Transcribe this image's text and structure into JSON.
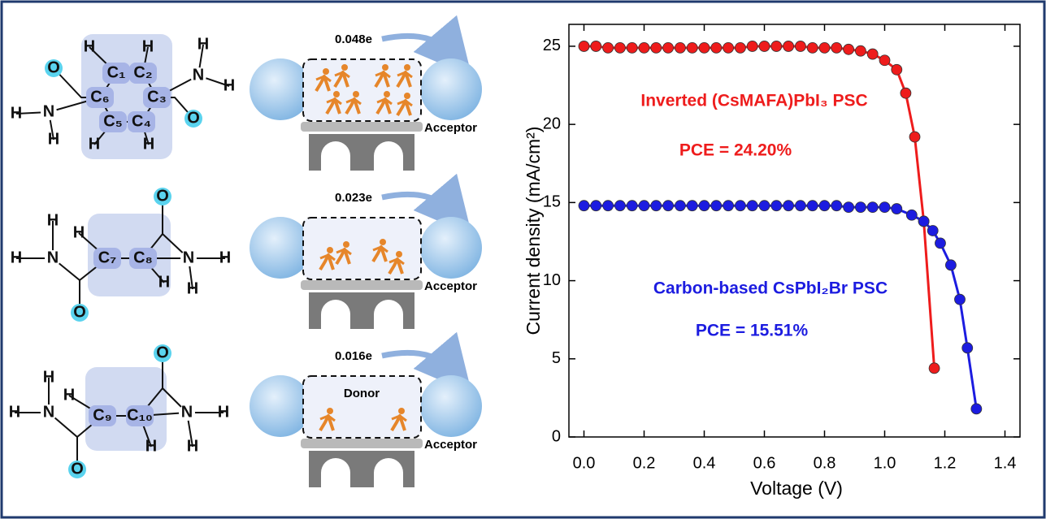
{
  "chart_data": {
    "type": "scatter-line",
    "xlabel": "Voltage (V)",
    "ylabel": "Current density (mA/cm²)",
    "xlim": [
      -0.05,
      1.45
    ],
    "ylim": [
      0,
      26.4
    ],
    "xticks": [
      {
        "value": 0,
        "label": "0.0"
      },
      0.2,
      0.4,
      0.6,
      0.8,
      {
        "value": 1,
        "label": "1.0"
      },
      1.2,
      1.4
    ],
    "yticks": [
      0,
      5,
      10,
      15,
      20,
      25
    ],
    "series": [
      {
        "name": "Inverted (CsMAFA)PbI₃ PSC",
        "color": "#ee1c1c",
        "x": [
          0,
          0.04,
          0.08,
          0.12,
          0.16,
          0.2,
          0.24,
          0.28,
          0.32,
          0.36,
          0.4,
          0.44,
          0.48,
          0.52,
          0.56,
          0.6,
          0.64,
          0.68,
          0.72,
          0.76,
          0.8,
          0.84,
          0.88,
          0.92,
          0.96,
          1.0,
          1.04,
          1.07,
          1.1,
          1.13,
          1.165
        ],
        "values": [
          25.0,
          25.0,
          24.9,
          24.9,
          24.9,
          24.9,
          24.9,
          24.9,
          24.9,
          24.9,
          24.9,
          24.9,
          24.9,
          24.9,
          25.0,
          25.0,
          25.0,
          25.0,
          25.0,
          24.9,
          24.9,
          24.9,
          24.8,
          24.7,
          24.5,
          24.1,
          23.5,
          22.0,
          19.2,
          13.8,
          4.4
        ]
      },
      {
        "name": "Carbon-based CsPbI₂Br PSC",
        "color": "#1c1ce0",
        "x": [
          0,
          0.04,
          0.08,
          0.12,
          0.16,
          0.2,
          0.24,
          0.28,
          0.32,
          0.36,
          0.4,
          0.44,
          0.48,
          0.52,
          0.56,
          0.6,
          0.64,
          0.68,
          0.72,
          0.76,
          0.8,
          0.84,
          0.88,
          0.92,
          0.96,
          1.0,
          1.04,
          1.09,
          1.13,
          1.16,
          1.185,
          1.22,
          1.25,
          1.275,
          1.305
        ],
        "values": [
          14.8,
          14.8,
          14.8,
          14.8,
          14.8,
          14.8,
          14.8,
          14.8,
          14.8,
          14.8,
          14.8,
          14.8,
          14.8,
          14.8,
          14.8,
          14.8,
          14.8,
          14.8,
          14.8,
          14.8,
          14.8,
          14.8,
          14.7,
          14.7,
          14.7,
          14.7,
          14.6,
          14.2,
          13.8,
          13.2,
          12.4,
          11.0,
          8.8,
          5.7,
          1.8
        ]
      }
    ],
    "annotations": [
      "PCE = 24.20%",
      "PCE = 15.51%"
    ]
  },
  "diagram": {
    "molecules": [
      {
        "atoms": [
          "H",
          "H",
          "C₁",
          "C₂",
          "C₆",
          "C₃",
          "C₅",
          "C₄",
          "H",
          "H",
          "O",
          "N",
          "H",
          "H",
          "O",
          "N",
          "H",
          "H"
        ]
      },
      {
        "atoms": [
          "O",
          "H",
          "N",
          "H",
          "O",
          "H",
          "C₇",
          "C₈",
          "H",
          "N",
          "H",
          "H"
        ]
      },
      {
        "atoms": [
          "O",
          "H",
          "N",
          "H",
          "O",
          "H",
          "C₉",
          "C₁₀",
          "H",
          "N",
          "H",
          "H"
        ]
      }
    ],
    "panels": [
      {
        "charge": "0.048e",
        "acceptor": "Acceptor"
      },
      {
        "charge": "0.023e",
        "acceptor": "Acceptor"
      },
      {
        "charge": "0.016e",
        "donor": "Donor",
        "acceptor": "Acceptor"
      }
    ]
  }
}
